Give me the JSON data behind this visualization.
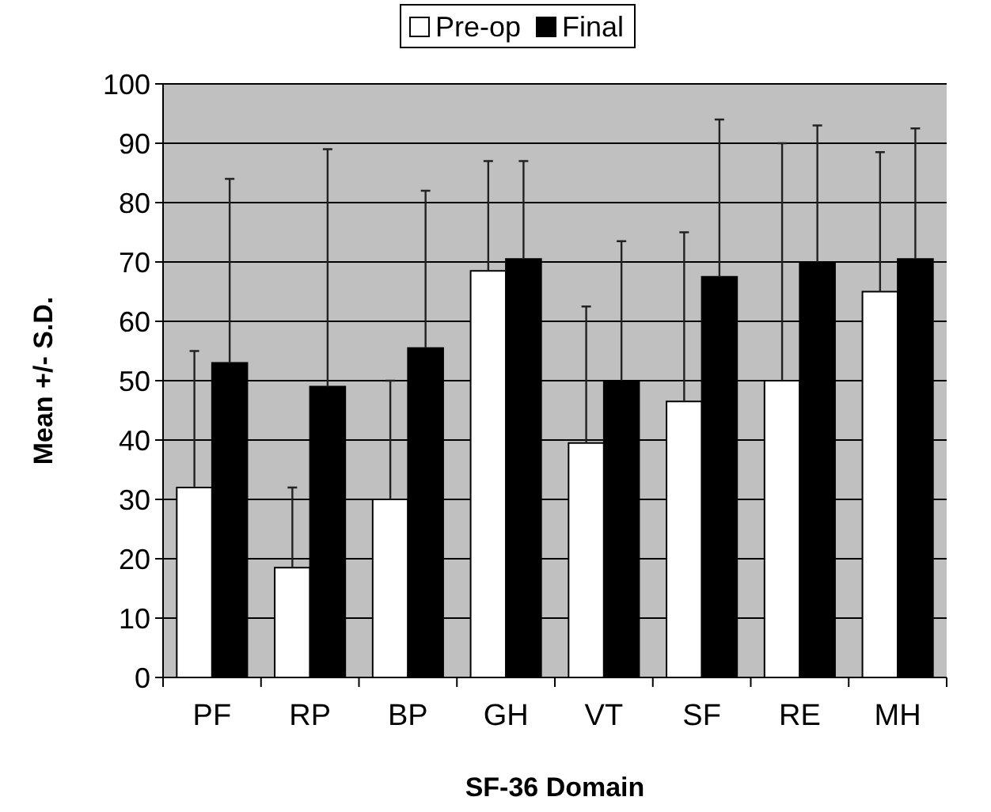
{
  "chart_data": {
    "type": "bar",
    "xlabel": "SF-36 Domain",
    "ylabel": "Mean +/- S.D.",
    "categories": [
      "PF",
      "RP",
      "BP",
      "GH",
      "VT",
      "SF",
      "RE",
      "MH"
    ],
    "series": [
      {
        "name": "Pre-op",
        "color": "#ffffff",
        "values": [
          32,
          18.5,
          30,
          68.5,
          39.5,
          46.5,
          50,
          65
        ],
        "errors": [
          [
            32,
            55
          ],
          [
            18.5,
            32
          ],
          [
            30,
            50
          ],
          [
            68.5,
            87
          ],
          [
            39.5,
            62.5
          ],
          [
            46.5,
            75
          ],
          [
            50,
            90
          ],
          [
            65,
            88.5
          ]
        ]
      },
      {
        "name": "Final",
        "color": "#000000",
        "values": [
          53,
          49,
          55.5,
          70.5,
          50,
          67.5,
          70,
          70.5
        ],
        "errors": [
          [
            53,
            84
          ],
          [
            49,
            89
          ],
          [
            55.5,
            82
          ],
          [
            70.5,
            87
          ],
          [
            50,
            73.5
          ],
          [
            67.5,
            94
          ],
          [
            70,
            93
          ],
          [
            70.5,
            92.5
          ]
        ]
      }
    ],
    "ylim": [
      0,
      100
    ],
    "yticks": [
      0,
      10,
      20,
      30,
      40,
      50,
      60,
      70,
      80,
      90,
      100
    ],
    "grid": "y",
    "legend": "top"
  }
}
